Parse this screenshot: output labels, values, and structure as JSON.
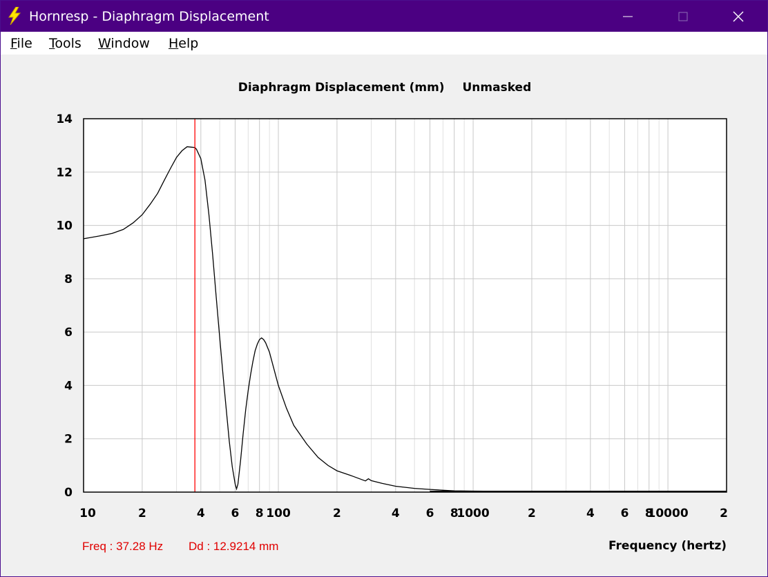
{
  "window": {
    "title": "Hornresp - Diaphragm Displacement",
    "icon": "lightning-bolt-icon",
    "controls": [
      "minimize-icon",
      "maximize-icon",
      "close-icon"
    ]
  },
  "menu": [
    {
      "key": "F",
      "rest": "ile"
    },
    {
      "key": "T",
      "rest": "ools"
    },
    {
      "key": "W",
      "rest": "indow"
    },
    {
      "key": "H",
      "rest": "elp"
    }
  ],
  "chart": {
    "title_main": "Diaphragm Displacement (mm)",
    "title_mask": "Unmasked",
    "y_ticks": [
      "0",
      "2",
      "4",
      "6",
      "8",
      "10",
      "12",
      "14"
    ],
    "x_ticks": [
      "10",
      "2",
      "4",
      "6",
      "8",
      "100",
      "2",
      "4",
      "6",
      "8",
      "1000",
      "2",
      "4",
      "6",
      "8",
      "10000",
      "2"
    ],
    "x_axis_label": "Frequency (hertz)",
    "readout_freq": "Freq : 37.28 Hz",
    "readout_dd": "Dd : 12.9214 mm",
    "colors": {
      "curve": "#000000",
      "cursor": "#ff0000",
      "grid": "#c8c8c8",
      "grid_minor": "#e0e0e0"
    }
  },
  "chart_data": {
    "type": "line",
    "x_scale": "log",
    "xlim": [
      10,
      20000
    ],
    "ylim": [
      0,
      14
    ],
    "xlabel": "Frequency (hertz)",
    "ylabel": "",
    "title": "Diaphragm Displacement (mm)   Unmasked",
    "grid": true,
    "cursor_x": 37.28,
    "series": [
      {
        "x": [
          10,
          12,
          14,
          16,
          18,
          20,
          22,
          24,
          26,
          28,
          30,
          32,
          34,
          36,
          37.28,
          38,
          40,
          42,
          44,
          46,
          48,
          50,
          52,
          54,
          56,
          58,
          60,
          61,
          62,
          64,
          66,
          68,
          70,
          72,
          74,
          76,
          78,
          80,
          82,
          84,
          86,
          90,
          95,
          100,
          110,
          120,
          140,
          160,
          180,
          200,
          240,
          280,
          290,
          300,
          340,
          400,
          500,
          600,
          700,
          800,
          1000,
          2000,
          5000,
          10000,
          20000
        ],
        "values": [
          9.5,
          9.6,
          9.7,
          9.85,
          10.1,
          10.4,
          10.8,
          11.2,
          11.7,
          12.15,
          12.55,
          12.8,
          12.95,
          12.93,
          12.92,
          12.85,
          12.5,
          11.7,
          10.4,
          8.9,
          7.3,
          5.8,
          4.4,
          3.1,
          1.9,
          0.95,
          0.3,
          0.12,
          0.3,
          1.2,
          2.2,
          3.1,
          3.8,
          4.4,
          4.9,
          5.3,
          5.55,
          5.72,
          5.78,
          5.72,
          5.6,
          5.25,
          4.6,
          4.0,
          3.15,
          2.5,
          1.8,
          1.3,
          1.0,
          0.8,
          0.6,
          0.42,
          0.5,
          0.43,
          0.33,
          0.22,
          0.14,
          0.1,
          0.07,
          0.05,
          0.04,
          0.02,
          0.015,
          0.01,
          0.01
        ]
      }
    ]
  }
}
